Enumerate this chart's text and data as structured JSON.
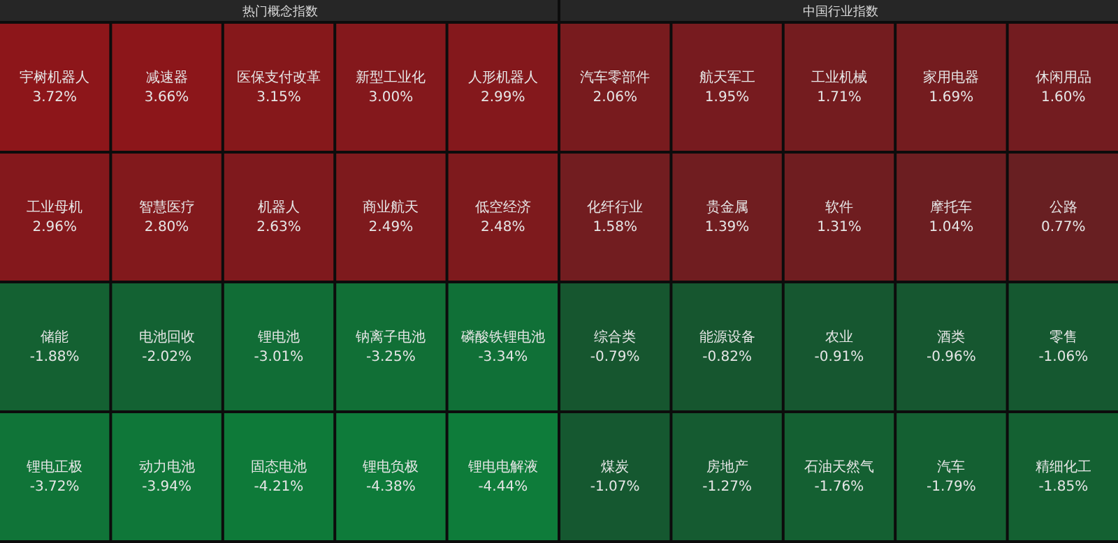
{
  "chart_data": [
    {
      "type": "other",
      "title": "热门概念指数",
      "categories": [
        "宇树机器人",
        "减速器",
        "医保支付改革",
        "新型工业化",
        "人形机器人",
        "工业母机",
        "智慧医疗",
        "机器人",
        "商业航天",
        "低空经济",
        "储能",
        "电池回收",
        "锂电池",
        "钠离子电池",
        "磷酸铁锂电池",
        "锂电正极",
        "动力电池",
        "固态电池",
        "锂电负极",
        "锂电电解液"
      ],
      "values": [
        3.72,
        3.66,
        3.15,
        3.0,
        2.99,
        2.96,
        2.8,
        2.63,
        2.49,
        2.48,
        -1.88,
        -2.02,
        -3.01,
        -3.25,
        -3.34,
        -3.72,
        -3.94,
        -4.21,
        -4.38,
        -4.44
      ],
      "value_labels": [
        "3.72%",
        "3.66%",
        "3.15%",
        "3.00%",
        "2.99%",
        "2.96%",
        "2.80%",
        "2.63%",
        "2.49%",
        "2.48%",
        "-1.88%",
        "-2.02%",
        "-3.01%",
        "-3.25%",
        "-3.34%",
        "-3.72%",
        "-3.94%",
        "-4.21%",
        "-4.38%",
        "-4.44%"
      ]
    },
    {
      "type": "other",
      "title": "中国行业指数",
      "categories": [
        "汽车零部件",
        "航天军工",
        "工业机械",
        "家用电器",
        "休闲用品",
        "化纤行业",
        "贵金属",
        "软件",
        "摩托车",
        "公路",
        "综合类",
        "能源设备",
        "农业",
        "酒类",
        "零售",
        "煤炭",
        "房地产",
        "石油天然气",
        "汽车",
        "精细化工"
      ],
      "values": [
        2.06,
        1.95,
        1.71,
        1.69,
        1.6,
        1.58,
        1.39,
        1.31,
        1.04,
        0.77,
        -0.79,
        -0.82,
        -0.91,
        -0.96,
        -1.06,
        -1.07,
        -1.27,
        -1.76,
        -1.79,
        -1.85
      ],
      "value_labels": [
        "2.06%",
        "1.95%",
        "1.71%",
        "1.69%",
        "1.60%",
        "1.58%",
        "1.39%",
        "1.31%",
        "1.04%",
        "0.77%",
        "-0.79%",
        "-0.82%",
        "-0.91%",
        "-0.96%",
        "-1.06%",
        "-1.07%",
        "-1.27%",
        "-1.76%",
        "-1.79%",
        "-1.85%"
      ]
    }
  ]
}
